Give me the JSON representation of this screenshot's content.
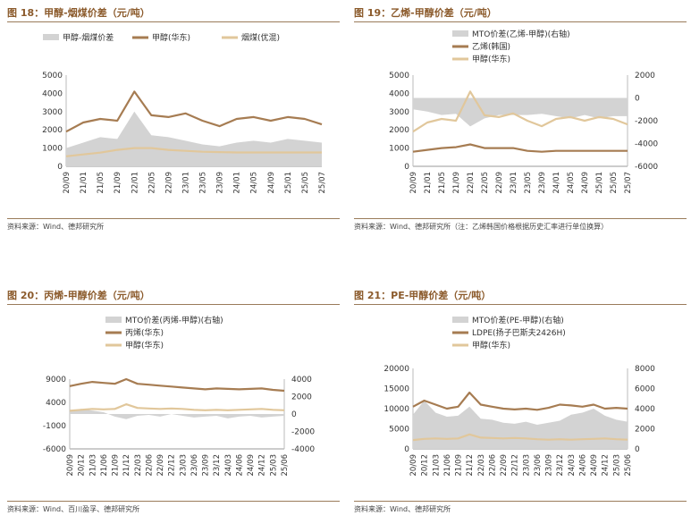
{
  "colors": {
    "title": "#8b5a2b",
    "spread": "#d3d3d3",
    "dark_line": "#a67c52",
    "light_line": "#e1c79b"
  },
  "x_tick_labels": [
    "20/09",
    "21/01",
    "21/05",
    "21/09",
    "22/01",
    "22/05",
    "22/09",
    "23/01",
    "23/05",
    "23/09",
    "24/01",
    "24/05",
    "24/09",
    "25/01",
    "25/05"
  ],
  "chart_data": [
    {
      "type": "area+line",
      "title": "图 18：甲醇-烟煤价差（元/吨）",
      "source": "资料来源：Wind、德邦研究所",
      "legend": [
        "甲醇-烟煤价差",
        "甲醇(华东)",
        "烟煤(优混)"
      ],
      "x": [
        "20/09",
        "21/01",
        "21/05",
        "21/09",
        "22/01",
        "22/05",
        "22/09",
        "23/01",
        "23/05",
        "23/09",
        "24/01",
        "24/05",
        "24/09",
        "25/01",
        "25/05",
        "25/07"
      ],
      "y_left": {
        "lim": [
          0,
          5000
        ],
        "ticks": [
          "0",
          "1000",
          "2000",
          "3000",
          "4000",
          "5000"
        ]
      },
      "series": [
        {
          "name": "甲醇-烟煤价差",
          "kind": "area",
          "axis": "left",
          "values": [
            1000,
            1300,
            1600,
            1500,
            3000,
            1700,
            1600,
            1400,
            1200,
            1100,
            1300,
            1400,
            1300,
            1500,
            1400,
            1300
          ]
        },
        {
          "name": "甲醇(华东)",
          "kind": "line",
          "axis": "left",
          "values": [
            1900,
            2400,
            2600,
            2500,
            4100,
            2800,
            2700,
            2900,
            2500,
            2200,
            2600,
            2700,
            2500,
            2700,
            2600,
            2300
          ]
        },
        {
          "name": "烟煤(优混)",
          "kind": "line",
          "axis": "left",
          "values": [
            550,
            650,
            750,
            900,
            1000,
            1000,
            900,
            850,
            800,
            780,
            760,
            760,
            760,
            760,
            760,
            760
          ]
        }
      ]
    },
    {
      "type": "area+line",
      "title": "图 19：乙烯-甲醇价差（元/吨）",
      "source": "资料来源：Wind、德邦研究所（注：乙烯韩国价格根据历史汇率进行单位换算）",
      "legend": [
        "MTO价差(乙烯-甲醇)(右轴)",
        "乙烯(韩国)",
        "甲醇(华东)"
      ],
      "x": [
        "20/09",
        "21/01",
        "21/05",
        "21/09",
        "22/01",
        "22/05",
        "22/09",
        "23/01",
        "23/05",
        "23/09",
        "24/01",
        "24/05",
        "24/09",
        "25/01",
        "25/05",
        "25/07"
      ],
      "y_left": {
        "lim": [
          0,
          5000
        ],
        "ticks": [
          "0",
          "1000",
          "2000",
          "3000",
          "4000",
          "5000"
        ]
      },
      "y_right": {
        "lim": [
          -6000,
          2000
        ],
        "ticks": [
          "-6000",
          "-4000",
          "-2000",
          "0",
          "2000"
        ]
      },
      "series": [
        {
          "name": "MTO价差(乙烯-甲醇)(右轴)",
          "kind": "area",
          "axis": "right",
          "values": [
            -1000,
            -1200,
            -1500,
            -1400,
            -2500,
            -1800,
            -1500,
            -1500,
            -1500,
            -1400,
            -1600,
            -1800,
            -1500,
            -1800,
            -1600,
            -1600
          ]
        },
        {
          "name": "乙烯(韩国)",
          "kind": "line",
          "axis": "left",
          "values": [
            800,
            900,
            1000,
            1050,
            1200,
            1000,
            1000,
            1000,
            850,
            800,
            850,
            850,
            850,
            850,
            850,
            850
          ]
        },
        {
          "name": "甲醇(华东)",
          "kind": "line",
          "axis": "left",
          "values": [
            1900,
            2400,
            2600,
            2500,
            4100,
            2800,
            2700,
            2900,
            2500,
            2200,
            2600,
            2700,
            2500,
            2700,
            2600,
            2300
          ]
        }
      ]
    },
    {
      "type": "area+line",
      "title": "图 20：丙烯-甲醇价差（元/吨）",
      "source": "资料来源：Wind、百川盈孚、德邦研究所",
      "legend": [
        "MTO价差(丙烯-甲醇)(右轴)",
        "丙烯(华东)",
        "甲醇(华东)"
      ],
      "x": [
        "20/09",
        "20/12",
        "21/03",
        "21/06",
        "21/09",
        "21/12",
        "22/03",
        "22/06",
        "22/09",
        "22/12",
        "23/03",
        "23/06",
        "23/09",
        "23/12",
        "24/03",
        "24/06",
        "24/09",
        "24/12",
        "25/03",
        "25/06"
      ],
      "y_left": {
        "lim": [
          -6000,
          9000
        ],
        "ticks": [
          "-6000",
          "-1000",
          "4000",
          "9000"
        ]
      },
      "y_right": {
        "lim": [
          -4000,
          4000
        ],
        "ticks": [
          "-4000",
          "-2000",
          "0",
          "2000",
          "4000"
        ]
      },
      "series": [
        {
          "name": "MTO价差(丙烯-甲醇)(右轴)",
          "kind": "area",
          "axis": "right",
          "values": [
            300,
            600,
            400,
            200,
            -300,
            -600,
            -200,
            -100,
            -300,
            0,
            -200,
            -400,
            -300,
            -200,
            -500,
            -300,
            -200,
            -400,
            -300,
            -200
          ]
        },
        {
          "name": "丙烯(华东)",
          "kind": "line",
          "axis": "left",
          "values": [
            7500,
            8000,
            8400,
            8200,
            8000,
            9000,
            8000,
            7800,
            7600,
            7400,
            7200,
            7000,
            6800,
            7000,
            6900,
            6800,
            6900,
            7000,
            6700,
            6500
          ]
        },
        {
          "name": "甲醇(华东)",
          "kind": "line",
          "axis": "left",
          "values": [
            2200,
            2400,
            2600,
            2500,
            2600,
            3600,
            2800,
            2700,
            2600,
            2700,
            2600,
            2400,
            2300,
            2400,
            2300,
            2400,
            2500,
            2600,
            2400,
            2300
          ]
        }
      ]
    },
    {
      "type": "area+line",
      "title": "图 21：PE-甲醇价差（元/吨）",
      "source": "资料来源：Wind、德邦研究所",
      "legend": [
        "MTO价差(PE-甲醇)(右轴)",
        "LDPE(扬子巴斯夫2426H)",
        "甲醇(华东)"
      ],
      "x": [
        "20/09",
        "20/12",
        "21/03",
        "21/06",
        "21/09",
        "21/12",
        "22/03",
        "22/06",
        "22/09",
        "22/12",
        "23/03",
        "23/06",
        "23/09",
        "23/12",
        "24/03",
        "24/06",
        "24/09",
        "24/12",
        "25/03",
        "25/06"
      ],
      "y_left": {
        "lim": [
          0,
          20000
        ],
        "ticks": [
          "0",
          "5000",
          "10000",
          "15000",
          "20000"
        ]
      },
      "y_right": {
        "lim": [
          0,
          8000
        ],
        "ticks": [
          "0",
          "2000",
          "4000",
          "6000",
          "8000"
        ]
      },
      "series": [
        {
          "name": "MTO价差(PE-甲醇)(右轴)",
          "kind": "area",
          "axis": "right",
          "values": [
            3400,
            4800,
            3600,
            3200,
            3300,
            4200,
            3000,
            2900,
            2600,
            2500,
            2700,
            2400,
            2600,
            2800,
            3400,
            3600,
            4000,
            3300,
            2900,
            2700
          ]
        },
        {
          "name": "LDPE(扬子巴斯夫2426H)",
          "kind": "line",
          "axis": "left",
          "values": [
            10500,
            12000,
            11000,
            10000,
            10500,
            14000,
            11000,
            10500,
            10000,
            9800,
            10000,
            9700,
            10200,
            11000,
            10800,
            10500,
            11000,
            10000,
            10200,
            10000
          ]
        },
        {
          "name": "甲醇(华东)",
          "kind": "line",
          "axis": "left",
          "values": [
            2200,
            2500,
            2600,
            2500,
            2600,
            3600,
            2800,
            2700,
            2600,
            2700,
            2600,
            2400,
            2300,
            2400,
            2300,
            2400,
            2500,
            2600,
            2400,
            2300
          ]
        }
      ]
    }
  ]
}
